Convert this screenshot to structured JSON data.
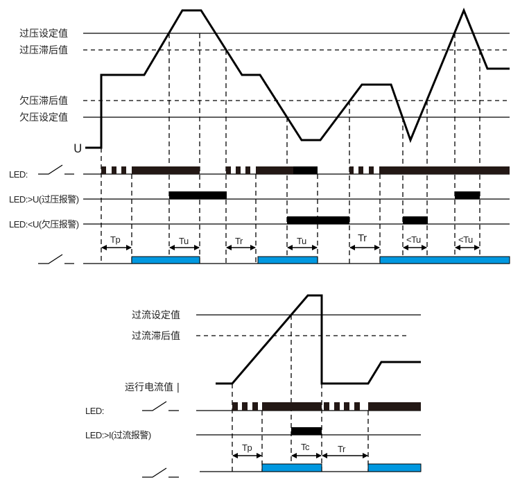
{
  "voltage_diagram": {
    "levels": {
      "over_set": "过压设定值",
      "over_hysteresis": "过压滞后值",
      "under_hysteresis": "欠压滞后值",
      "under_set": "欠压设定值"
    },
    "signal_label": "U",
    "rows": {
      "led": "LED:",
      "led_over": "LED:>U(过压报警)",
      "led_under": "LED:<U(欠压报警)"
    },
    "intervals": [
      "Tp",
      "Tu",
      "Tr",
      "Tu",
      "Tr",
      "<Tu",
      "<Tu"
    ]
  },
  "current_diagram": {
    "levels": {
      "over_set": "过流设定值",
      "over_hysteresis": "过流滞后值"
    },
    "signal_label": "运行电流值 |",
    "rows": {
      "led": "LED:",
      "led_over": "LED:>I(过流报警)"
    },
    "intervals": [
      "Tp",
      "Tc",
      "Tr"
    ]
  },
  "colors": {
    "relay_on": "#0098e0",
    "led_on": "#231815"
  }
}
